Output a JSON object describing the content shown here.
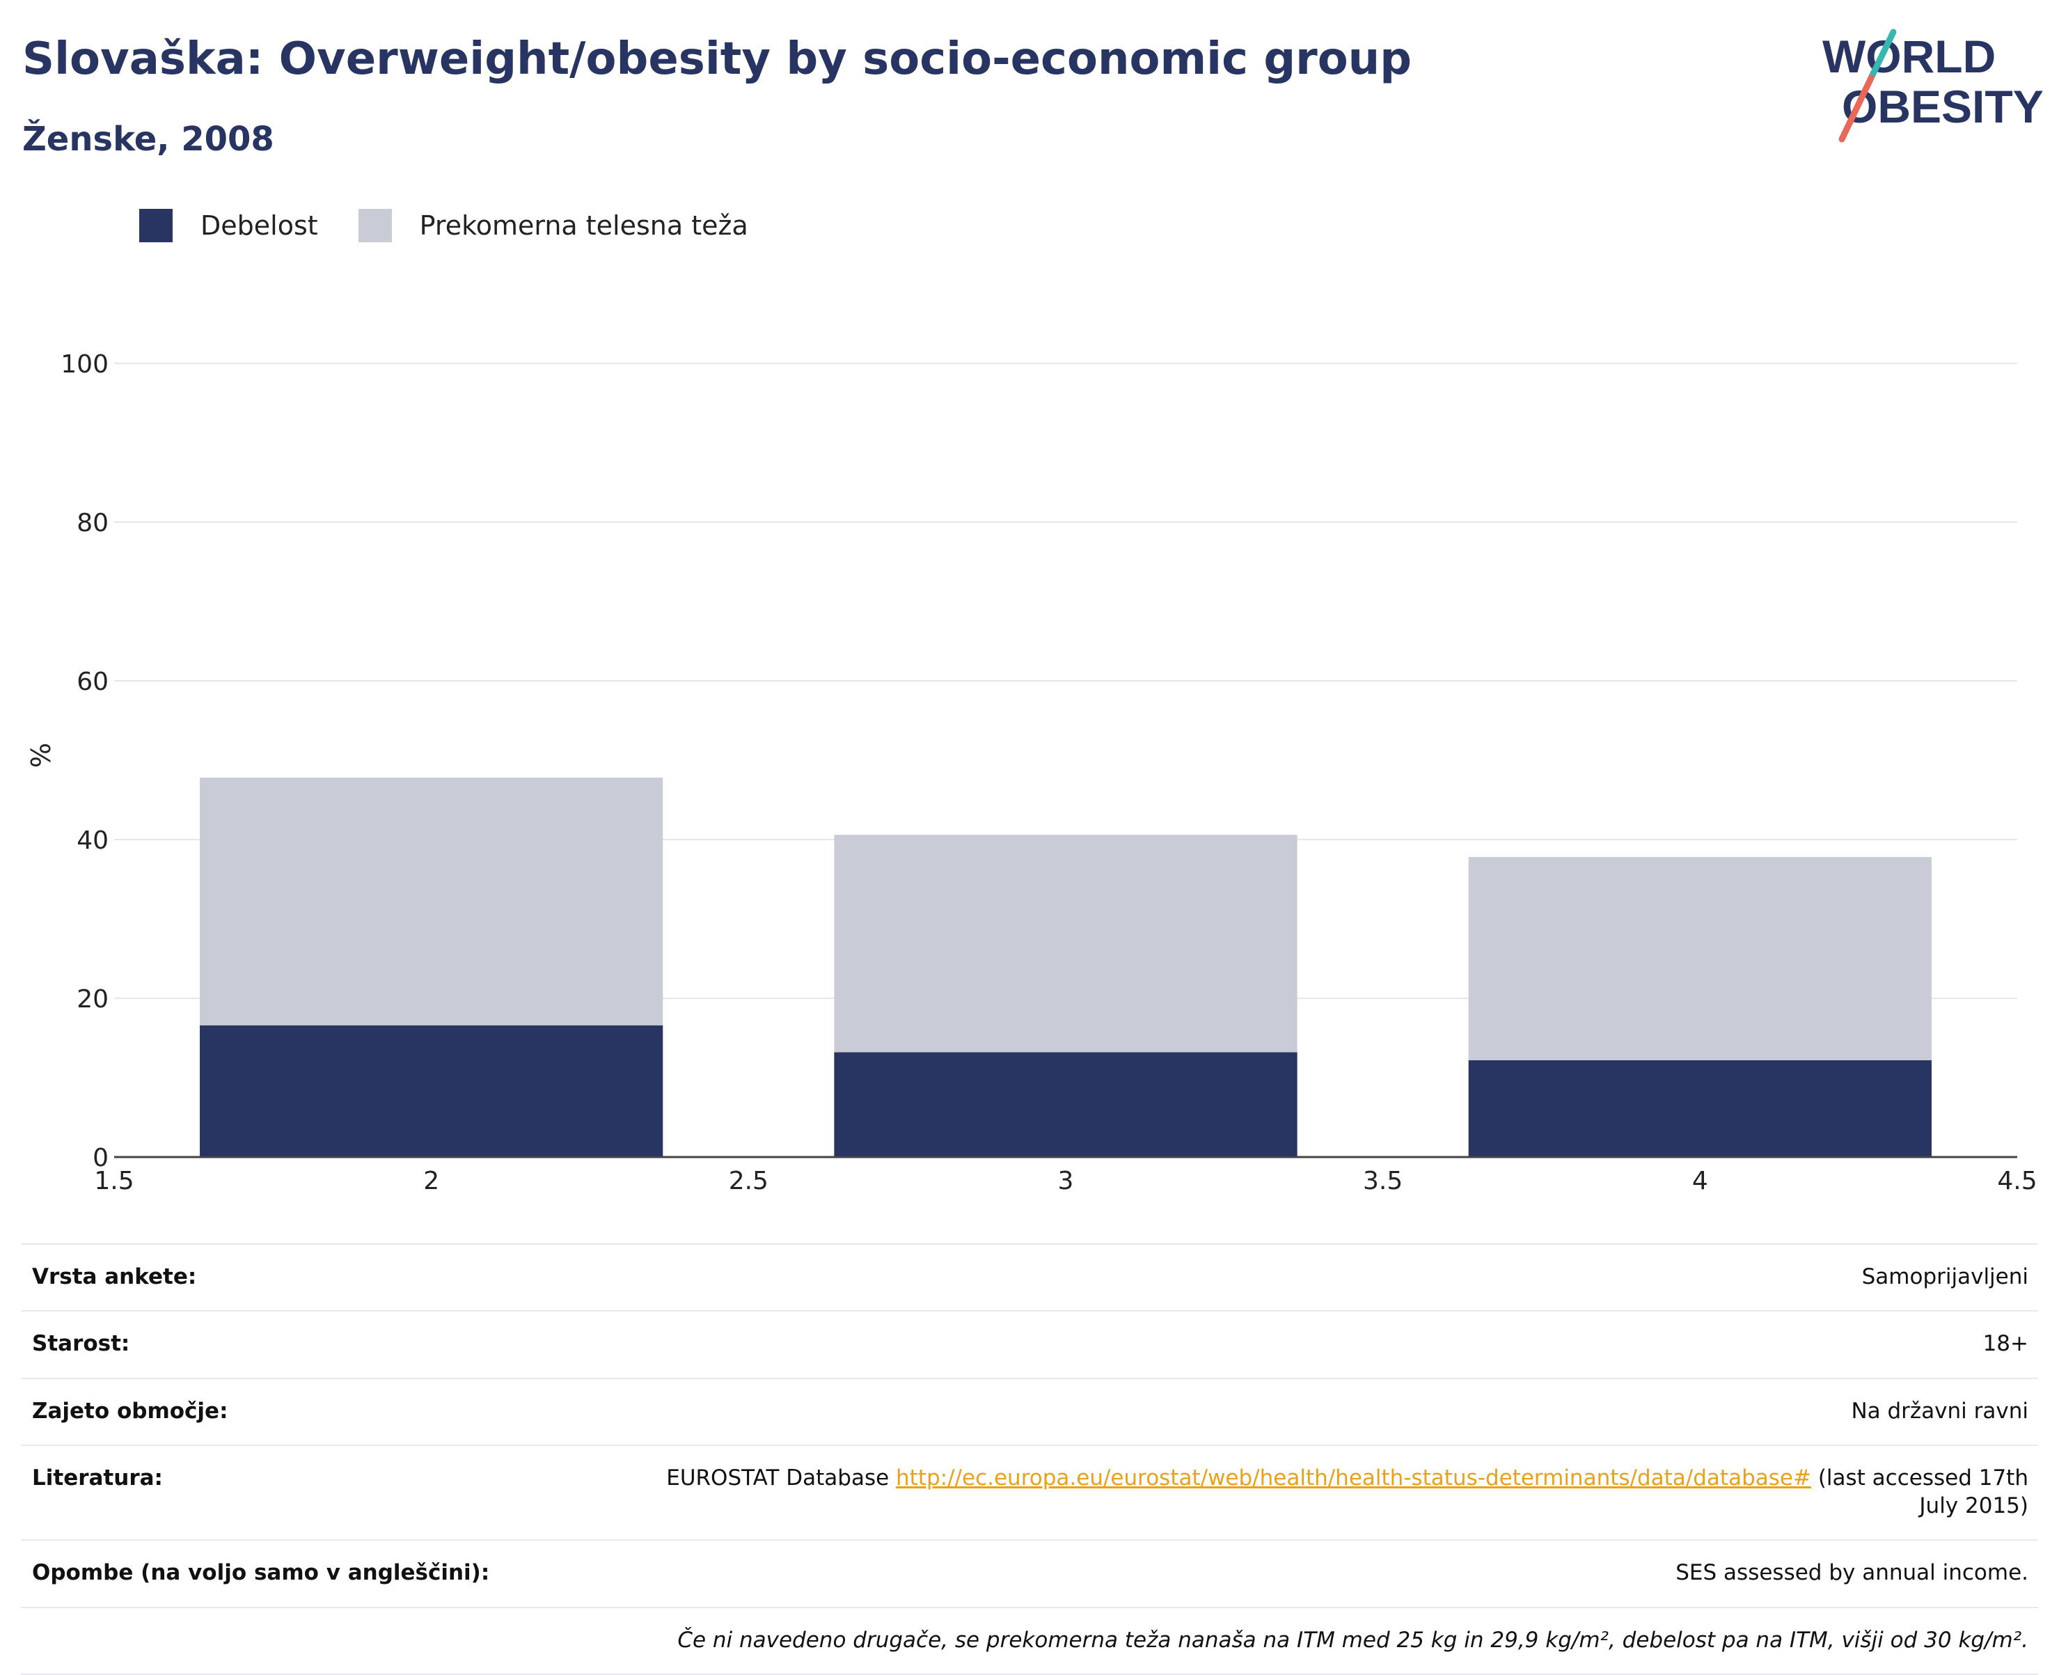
{
  "header": {
    "title": "Slovaška: Overweight/obesity by socio-economic group",
    "subtitle": "Ženske, 2008"
  },
  "logo": {
    "line1": "WORLD",
    "line2": "OBESITY"
  },
  "colors": {
    "obesity": "#283462",
    "overweight": "#c9ccd7",
    "accent_teal": "#37b6b2",
    "accent_coral": "#e8685a",
    "link": "#e8a21a"
  },
  "chart_data": {
    "type": "bar",
    "stacked": true,
    "x": [
      2,
      3,
      4
    ],
    "series": [
      {
        "name": "Debelost",
        "values": [
          16.6,
          13.2,
          12.2
        ]
      },
      {
        "name": "Prekomerna telesna teža",
        "values": [
          31.2,
          27.4,
          25.6
        ]
      }
    ],
    "ylabel": "%",
    "xlim": [
      1.5,
      4.5
    ],
    "ylim": [
      0,
      100
    ],
    "x_ticks": [
      "1.5",
      "2",
      "2.5",
      "3",
      "3.5",
      "4",
      "4.5"
    ],
    "y_ticks": [
      "0",
      "20",
      "40",
      "60",
      "80",
      "100"
    ],
    "grid": true,
    "legend_position": "top-left"
  },
  "info": {
    "rows": [
      {
        "label": "Vrsta ankete:",
        "value": "Samoprijavljeni"
      },
      {
        "label": "Starost:",
        "value": "18+"
      },
      {
        "label": "Zajeto območje:",
        "value": "Na državni ravni"
      },
      {
        "label": "Literatura:",
        "value_prefix": "EUROSTAT Database",
        "link": "http://ec.europa.eu/eurostat/web/health/health-status-determinants/data/database#",
        "value_suffix": "(last accessed 17th July 2015)"
      },
      {
        "label": "Opombe (na voljo samo v angleščini):",
        "value": "SES assessed by annual income."
      }
    ],
    "footnote": "Če ni navedeno drugače, se prekomerna teža nanaša na ITM med 25 kg in 29,9 kg/m², debelost pa na ITM, višji od 30 kg/m²."
  }
}
